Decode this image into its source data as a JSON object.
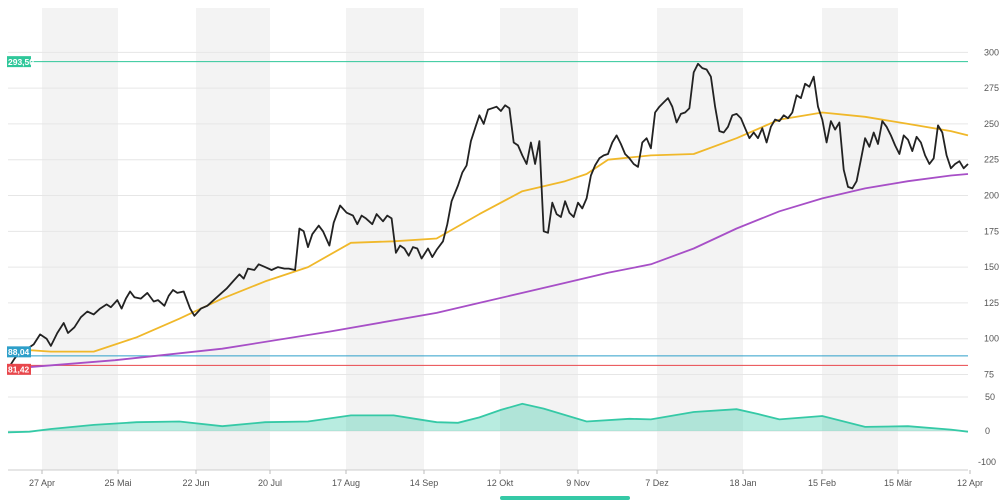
{
  "chart_data": [
    {
      "type": "line",
      "x_ticks": [
        "27 Apr",
        "25 Mai",
        "22 Jun",
        "20 Jul",
        "17 Aug",
        "14 Sep",
        "12 Okt",
        "9 Nov",
        "7 Dez",
        "18 Jan",
        "15 Feb",
        "15 Mär",
        "12 Apr"
      ],
      "ylim": [
        60,
        310
      ],
      "y_ticks": [
        75,
        100,
        125,
        150,
        175,
        200,
        225,
        250,
        275,
        300
      ],
      "grid": "alternating vertical bands",
      "reference_lines": [
        {
          "label": "293,50",
          "value": 293.5,
          "color": "#2fc79a"
        },
        {
          "label": "88,04",
          "value": 88.04,
          "color": "#2d9fc9"
        },
        {
          "label": "81,42",
          "value": 81.42,
          "color": "#e8474c"
        }
      ],
      "series": [
        {
          "key": "price",
          "color": "#222222",
          "points": [
            [
              0,
              79
            ],
            [
              3,
              86
            ],
            [
              6,
              92
            ],
            [
              9,
              93
            ],
            [
              12,
              96
            ],
            [
              15,
              103
            ],
            [
              18,
              100
            ],
            [
              20,
              95
            ],
            [
              23,
              104
            ],
            [
              26,
              111
            ],
            [
              28,
              104
            ],
            [
              31,
              108
            ],
            [
              34,
              115
            ],
            [
              37,
              119
            ],
            [
              40,
              117
            ],
            [
              43,
              121
            ],
            [
              46,
              124
            ],
            [
              48,
              122
            ],
            [
              51,
              127
            ],
            [
              53,
              121
            ],
            [
              55,
              128
            ],
            [
              57,
              133
            ],
            [
              59,
              129
            ],
            [
              62,
              128
            ],
            [
              65,
              132
            ],
            [
              68,
              126
            ],
            [
              70,
              127
            ],
            [
              73,
              123
            ],
            [
              75,
              130
            ],
            [
              77,
              134
            ],
            [
              79,
              132
            ],
            [
              82,
              133
            ],
            [
              85,
              121
            ],
            [
              87,
              116
            ],
            [
              90,
              121
            ],
            [
              93,
              123
            ],
            [
              96,
              127
            ],
            [
              99,
              131
            ],
            [
              102,
              135
            ],
            [
              105,
              140
            ],
            [
              108,
              145
            ],
            [
              110,
              142
            ],
            [
              112,
              149
            ],
            [
              115,
              148
            ],
            [
              117,
              152
            ],
            [
              120,
              150
            ],
            [
              123,
              148
            ],
            [
              126,
              150
            ],
            [
              129,
              149
            ],
            [
              131,
              149
            ],
            [
              134,
              148
            ],
            [
              136,
              177
            ],
            [
              138,
              175
            ],
            [
              140,
              164
            ],
            [
              142,
              173
            ],
            [
              145,
              179
            ],
            [
              147,
              175
            ],
            [
              150,
              165
            ],
            [
              152,
              181
            ],
            [
              155,
              193
            ],
            [
              158,
              188
            ],
            [
              161,
              186
            ],
            [
              163,
              180
            ],
            [
              165,
              186
            ],
            [
              167,
              184
            ],
            [
              170,
              180
            ],
            [
              172,
              187
            ],
            [
              175,
              182
            ],
            [
              177,
              186
            ],
            [
              179,
              184
            ],
            [
              181,
              160
            ],
            [
              183,
              165
            ],
            [
              185,
              163
            ],
            [
              187,
              158
            ],
            [
              189,
              164
            ],
            [
              191,
              163
            ],
            [
              193,
              156
            ],
            [
              196,
              163
            ],
            [
              198,
              157
            ],
            [
              200,
              162
            ],
            [
              203,
              168
            ],
            [
              205,
              180
            ],
            [
              207,
              196
            ],
            [
              210,
              207
            ],
            [
              212,
              216
            ],
            [
              214,
              221
            ],
            [
              216,
              238
            ],
            [
              218,
              247
            ],
            [
              220,
              256
            ],
            [
              222,
              250
            ],
            [
              224,
              260
            ],
            [
              226,
              261
            ],
            [
              228,
              262
            ],
            [
              230,
              259
            ],
            [
              232,
              263
            ],
            [
              234,
              261
            ],
            [
              236,
              237
            ],
            [
              238,
              235
            ],
            [
              240,
              228
            ],
            [
              242,
              222
            ],
            [
              244,
              237
            ],
            [
              246,
              222
            ],
            [
              248,
              238
            ],
            [
              250,
              175
            ],
            [
              252,
              174
            ],
            [
              254,
              195
            ],
            [
              256,
              187
            ],
            [
              258,
              185
            ],
            [
              260,
              196
            ],
            [
              262,
              188
            ],
            [
              264,
              185
            ],
            [
              266,
              195
            ],
            [
              268,
              191
            ],
            [
              270,
              198
            ],
            [
              272,
              214
            ],
            [
              274,
              221
            ],
            [
              276,
              226
            ],
            [
              278,
              228
            ],
            [
              280,
              229
            ],
            [
              282,
              237
            ],
            [
              284,
              242
            ],
            [
              286,
              236
            ],
            [
              288,
              229
            ],
            [
              290,
              226
            ],
            [
              292,
              222
            ],
            [
              294,
              220
            ],
            [
              296,
              237
            ],
            [
              298,
              240
            ],
            [
              300,
              233
            ],
            [
              302,
              258
            ],
            [
              304,
              262
            ],
            [
              306,
              265
            ],
            [
              308,
              268
            ],
            [
              310,
              262
            ],
            [
              312,
              251
            ],
            [
              314,
              257
            ],
            [
              316,
              258
            ],
            [
              318,
              261
            ],
            [
              320,
              286
            ],
            [
              322,
              292
            ],
            [
              324,
              289
            ],
            [
              326,
              288
            ],
            [
              328,
              283
            ],
            [
              330,
              262
            ],
            [
              332,
              245
            ],
            [
              334,
              244
            ],
            [
              336,
              248
            ],
            [
              338,
              256
            ],
            [
              340,
              257
            ],
            [
              342,
              254
            ],
            [
              344,
              247
            ],
            [
              346,
              240
            ],
            [
              348,
              244
            ],
            [
              350,
              240
            ],
            [
              352,
              247
            ],
            [
              354,
              237
            ],
            [
              356,
              248
            ],
            [
              358,
              253
            ],
            [
              360,
              252
            ],
            [
              362,
              256
            ],
            [
              364,
              254
            ],
            [
              366,
              258
            ],
            [
              368,
              270
            ],
            [
              370,
              268
            ],
            [
              372,
              278
            ],
            [
              374,
              276
            ],
            [
              376,
              283
            ],
            [
              378,
              262
            ],
            [
              380,
              253
            ],
            [
              382,
              237
            ],
            [
              384,
              252
            ],
            [
              386,
              246
            ],
            [
              388,
              251
            ],
            [
              390,
              218
            ],
            [
              392,
              206
            ],
            [
              394,
              205
            ],
            [
              396,
              210
            ],
            [
              398,
              225
            ],
            [
              400,
              240
            ],
            [
              402,
              234
            ],
            [
              404,
              244
            ],
            [
              406,
              236
            ],
            [
              408,
              252
            ],
            [
              410,
              248
            ],
            [
              412,
              242
            ],
            [
              414,
              235
            ],
            [
              416,
              229
            ],
            [
              418,
              242
            ],
            [
              420,
              239
            ],
            [
              422,
              231
            ],
            [
              424,
              241
            ],
            [
              426,
              237
            ],
            [
              428,
              228
            ],
            [
              430,
              222
            ],
            [
              432,
              226
            ],
            [
              434,
              249
            ],
            [
              436,
              244
            ],
            [
              438,
              228
            ],
            [
              440,
              219
            ],
            [
              442,
              222
            ],
            [
              444,
              224
            ],
            [
              446,
              219
            ],
            [
              448,
              222
            ]
          ]
        },
        {
          "key": "ma_50",
          "color": "#f0b82a",
          "points": [
            [
              0,
              93
            ],
            [
              20,
              91
            ],
            [
              40,
              91
            ],
            [
              60,
              101
            ],
            [
              80,
              114
            ],
            [
              100,
              128
            ],
            [
              120,
              140
            ],
            [
              140,
              150
            ],
            [
              160,
              167
            ],
            [
              180,
              168
            ],
            [
              200,
              170
            ],
            [
              220,
              187
            ],
            [
              240,
              203
            ],
            [
              260,
              210
            ],
            [
              270,
              215
            ],
            [
              280,
              225
            ],
            [
              300,
              228
            ],
            [
              320,
              229
            ],
            [
              340,
              240
            ],
            [
              360,
              253
            ],
            [
              380,
              258
            ],
            [
              400,
              255
            ],
            [
              420,
              250
            ],
            [
              440,
              245
            ],
            [
              448,
              242
            ]
          ]
        },
        {
          "key": "ma_200",
          "color": "#a74fc7",
          "points": [
            [
              0,
              79
            ],
            [
              50,
              85
            ],
            [
              100,
              93
            ],
            [
              150,
              105
            ],
            [
              200,
              118
            ],
            [
              220,
              125
            ],
            [
              240,
              132
            ],
            [
              260,
              139
            ],
            [
              280,
              146
            ],
            [
              300,
              152
            ],
            [
              320,
              163
            ],
            [
              340,
              177
            ],
            [
              360,
              189
            ],
            [
              380,
              198
            ],
            [
              400,
              205
            ],
            [
              420,
              210
            ],
            [
              440,
              214
            ],
            [
              448,
              215
            ]
          ]
        }
      ]
    },
    {
      "type": "area",
      "x_ticks": [
        "27 Apr",
        "25 Mai",
        "22 Jun",
        "20 Jul",
        "17 Aug",
        "14 Sep",
        "12 Okt",
        "9 Nov",
        "7 Dez",
        "18 Jan",
        "15 Feb",
        "15 Mär",
        "12 Apr"
      ],
      "ylim": [
        -100,
        75
      ],
      "y_ticks": [
        -100,
        0,
        50
      ],
      "series": [
        {
          "key": "oscillator",
          "color": "#35c9a6",
          "points": [
            [
              0,
              -2
            ],
            [
              10,
              -1
            ],
            [
              20,
              3
            ],
            [
              40,
              9
            ],
            [
              60,
              13
            ],
            [
              80,
              14
            ],
            [
              100,
              7
            ],
            [
              120,
              13
            ],
            [
              140,
              14
            ],
            [
              160,
              23
            ],
            [
              180,
              23
            ],
            [
              190,
              18
            ],
            [
              200,
              13
            ],
            [
              210,
              12
            ],
            [
              220,
              20
            ],
            [
              230,
              31
            ],
            [
              240,
              40
            ],
            [
              250,
              33
            ],
            [
              270,
              14
            ],
            [
              290,
              18
            ],
            [
              300,
              17
            ],
            [
              320,
              28
            ],
            [
              340,
              32
            ],
            [
              350,
              25
            ],
            [
              360,
              17
            ],
            [
              380,
              22
            ],
            [
              400,
              6
            ],
            [
              420,
              7
            ],
            [
              440,
              2
            ],
            [
              448,
              -1
            ]
          ]
        }
      ]
    }
  ]
}
